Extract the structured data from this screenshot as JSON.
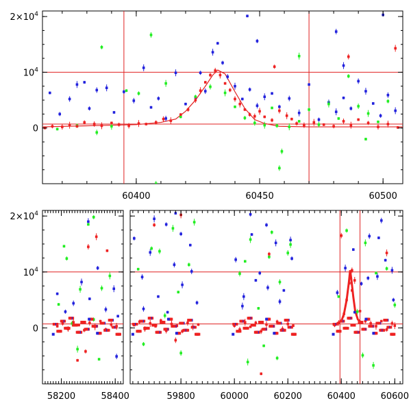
{
  "colors": {
    "frame": "#000000",
    "reference_lines": "#e02020",
    "model_curve": "#e02020",
    "series_red": "#ee2222",
    "series_green": "#22ee22",
    "series_blue": "#2222dd"
  },
  "y_axis": {
    "ticks": [
      {
        "value": 20000,
        "mantissa": "2×10",
        "exp": "4"
      },
      {
        "value": 10000,
        "mantissa": "10",
        "exp": "4"
      },
      {
        "value": 0,
        "mantissa": "0",
        "exp": ""
      }
    ]
  },
  "chart_data": [
    {
      "type": "scatter",
      "title": "",
      "xlabel": "",
      "ylabel": "",
      "xlim": [
        60362,
        60508
      ],
      "ylim": [
        -10000,
        21000
      ],
      "xticks": [
        60400,
        60450,
        60500
      ],
      "ref_lines": {
        "x": [
          60395,
          60470
        ],
        "y": [
          10000,
          700
        ]
      },
      "model_curve": {
        "x": [
          60362,
          60400,
          60410,
          60416,
          60420,
          60424,
          60428,
          60431,
          60433,
          60436,
          60440,
          60444,
          60448,
          60452,
          60458,
          60470,
          60508
        ],
        "y": [
          200,
          600,
          1000,
          1600,
          3000,
          5000,
          7500,
          9500,
          10400,
          9700,
          6500,
          3500,
          1500,
          800,
          300,
          200,
          200
        ]
      },
      "series": [
        {
          "color_key": "series_red",
          "x": [
            60363,
            60366,
            60370,
            60373,
            60376,
            60379,
            60383,
            60386,
            60390,
            60393,
            60397,
            60401,
            60404,
            60408,
            60411,
            60414,
            60418,
            60421,
            60424,
            60426,
            60428,
            60430,
            60432,
            60434,
            60436,
            60438,
            60440,
            60442,
            60444,
            60446,
            60448,
            60450,
            60452,
            60455,
            60458,
            60461,
            60463,
            60465,
            60468,
            60472,
            60476,
            60480,
            60484,
            60487,
            60490,
            60494,
            60498,
            60502,
            60506,
            60456,
            60486,
            60505
          ],
          "y": [
            0,
            300,
            200,
            500,
            300,
            1000,
            700,
            400,
            900,
            600,
            400,
            800,
            700,
            1000,
            1600,
            1300,
            2400,
            3300,
            5000,
            6700,
            8200,
            9500,
            10300,
            9500,
            8000,
            6800,
            5200,
            4300,
            3300,
            2400,
            2100,
            3000,
            2000,
            1400,
            3100,
            2200,
            1600,
            800,
            500,
            1000,
            600,
            300,
            1200,
            500,
            1500,
            900,
            200,
            700,
            100,
            11000,
            12800,
            14300
          ]
        },
        {
          "color_key": "series_green",
          "x": [
            60368,
            60376,
            60384,
            60390,
            60396,
            60401,
            60406,
            60412,
            60418,
            60424,
            60430,
            60436,
            60440,
            60444,
            60448,
            60452,
            60455,
            60457,
            60459,
            60462,
            60466,
            60470,
            60474,
            60478,
            60482,
            60486,
            60490,
            60494,
            60498,
            60502,
            60458,
            60466,
            60493,
            60386,
            60408
          ],
          "y": [
            -200,
            400,
            -800,
            300,
            6700,
            6200,
            16700,
            8000,
            2000,
            5600,
            7400,
            6300,
            3800,
            1800,
            900,
            500,
            3600,
            400,
            -4200,
            200,
            1200,
            3300,
            600,
            4300,
            1700,
            9300,
            3900,
            2600,
            1100,
            4800,
            -7200,
            12900,
            -2000,
            14500,
            -10000
          ]
        },
        {
          "color_key": "series_blue",
          "x": [
            60365,
            60369,
            60373,
            60376,
            60379,
            60381,
            60384,
            60388,
            60391,
            60395,
            60399,
            60403,
            60406,
            60409,
            60412,
            60416,
            60420,
            60424,
            60428,
            60431,
            60433,
            60435,
            60437,
            60440,
            60443,
            60446,
            60449,
            60452,
            60455,
            60458,
            60462,
            60466,
            60470,
            60474,
            60478,
            60481,
            60484,
            60487,
            60490,
            60493,
            60496,
            60499,
            60502,
            60505,
            60445,
            60449,
            60481,
            60484,
            60500,
            60426
          ],
          "y": [
            6300,
            2500,
            5200,
            7800,
            8200,
            3500,
            6800,
            7200,
            2800,
            6500,
            4900,
            10800,
            3700,
            5300,
            1700,
            9900,
            4300,
            5500,
            6600,
            13600,
            15200,
            11700,
            9200,
            7500,
            5200,
            6900,
            4000,
            5600,
            6200,
            3800,
            5300,
            2700,
            7800,
            1500,
            4600,
            2900,
            5400,
            3500,
            8400,
            6600,
            4400,
            2200,
            5900,
            3100,
            20100,
            15600,
            17300,
            11200,
            20300,
            9900
          ]
        }
      ]
    },
    {
      "type": "scatter",
      "title": "",
      "xlabel": "",
      "ylabel": "",
      "xlim": [
        58130,
        60630
      ],
      "ylim": [
        -10000,
        21000
      ],
      "xticks": [
        58200,
        58400,
        59800,
        60000,
        60200,
        60400,
        60600
      ],
      "xbreak": [
        58430,
        59610
      ],
      "ref_lines": {
        "x": [
          60395,
          60470
        ],
        "y": [
          10000,
          700
        ]
      },
      "flare": {
        "x": [
          60380,
          60400,
          60410,
          60420,
          60428,
          60433,
          60438,
          60445,
          60452,
          60462,
          60480
        ],
        "y": [
          700,
          1200,
          2500,
          5000,
          8000,
          10300,
          8500,
          5500,
          3000,
          1500,
          800
        ]
      },
      "series": [
        {
          "color_key": "series_red",
          "x": [
            58185,
            58205,
            58225,
            58245,
            58265,
            58285,
            58305,
            58325,
            58345,
            58365,
            58385,
            58405,
            59625,
            59645,
            59665,
            59685,
            59705,
            59725,
            59745,
            59765,
            59785,
            59805,
            59825,
            59845,
            59865,
            60000,
            60020,
            60040,
            60060,
            60080,
            60100,
            60120,
            60140,
            60160,
            60180,
            60200,
            60220,
            60375,
            60390,
            60410,
            60420,
            60430,
            60440,
            60450,
            60470,
            60490,
            60510,
            60530,
            60550,
            60570,
            60590,
            60600,
            58260,
            58290,
            58300,
            58330,
            58370,
            59700,
            59780,
            59800,
            60100,
            60130,
            60400,
            60570,
            60440
          ],
          "y": [
            300,
            800,
            -200,
            1000,
            500,
            -400,
            900,
            200,
            1200,
            -300,
            600,
            300,
            500,
            1100,
            -200,
            800,
            300,
            1300,
            -500,
            700,
            400,
            -600,
            900,
            200,
            600,
            400,
            -300,
            1000,
            200,
            900,
            -600,
            600,
            300,
            1100,
            -200,
            700,
            400,
            500,
            900,
            2500,
            5000,
            8000,
            10300,
            8500,
            3000,
            1200,
            800,
            300,
            1200,
            -300,
            800,
            400,
            -5800,
            -4200,
            14500,
            16300,
            13800,
            18400,
            -2200,
            20200,
            -8200,
            13200,
            16500,
            13400,
            6700
          ]
        },
        {
          "color_key": "series_green",
          "x": [
            58190,
            58220,
            58240,
            58270,
            58300,
            58320,
            58350,
            58380,
            59640,
            59690,
            59740,
            59770,
            59790,
            59830,
            60020,
            60060,
            60090,
            60130,
            60170,
            60210,
            60390,
            60420,
            60460,
            60490,
            60530,
            60570,
            60600,
            58260,
            58340,
            59660,
            59800,
            60050,
            60110,
            60160,
            60480,
            60520,
            58210,
            58320,
            59720,
            59850,
            60040,
            60140,
            60200
          ],
          "y": [
            4200,
            12400,
            800,
            6900,
            18500,
            1500,
            7100,
            9300,
            10500,
            14200,
            2200,
            17800,
            6400,
            11300,
            9700,
            15800,
            3500,
            12700,
            8200,
            14900,
            5600,
            17400,
            2900,
            15200,
            9800,
            10600,
            4100,
            -3800,
            -5600,
            -2900,
            -4500,
            -6100,
            -3200,
            -5400,
            -4900,
            -6700,
            14600,
            19800,
            13700,
            18900,
            11900,
            17100,
            13400
          ]
        },
        {
          "color_key": "series_blue",
          "x": [
            58185,
            58215,
            58245,
            58275,
            58305,
            58335,
            58365,
            58395,
            58410,
            59625,
            59655,
            59685,
            59715,
            59745,
            59775,
            59805,
            59835,
            59860,
            60005,
            60035,
            60065,
            60095,
            60125,
            60155,
            60185,
            60215,
            60385,
            60415,
            60445,
            60475,
            60505,
            60535,
            60565,
            60595,
            59660,
            59700,
            59750,
            59800,
            59840,
            60030,
            60080,
            60120,
            60170,
            60210,
            60450,
            60500,
            60550,
            60590,
            59780,
            60060,
            58405,
            58300,
            60540
          ],
          "y": [
            6100,
            2900,
            4400,
            8200,
            5200,
            10700,
            3300,
            7000,
            2100,
            16000,
            9100,
            13500,
            5600,
            18500,
            11300,
            7700,
            14800,
            4500,
            12200,
            5600,
            16700,
            9800,
            7200,
            15200,
            6700,
            12400,
            6300,
            10700,
            14000,
            7900,
            16400,
            9200,
            12100,
            5000,
            3400,
            19500,
            2800,
            16800,
            10100,
            3900,
            8500,
            18400,
            4700,
            15700,
            2800,
            8900,
            19200,
            10300,
            20500,
            20300,
            -5100,
            19000,
            16100
          ]
        }
      ]
    }
  ]
}
